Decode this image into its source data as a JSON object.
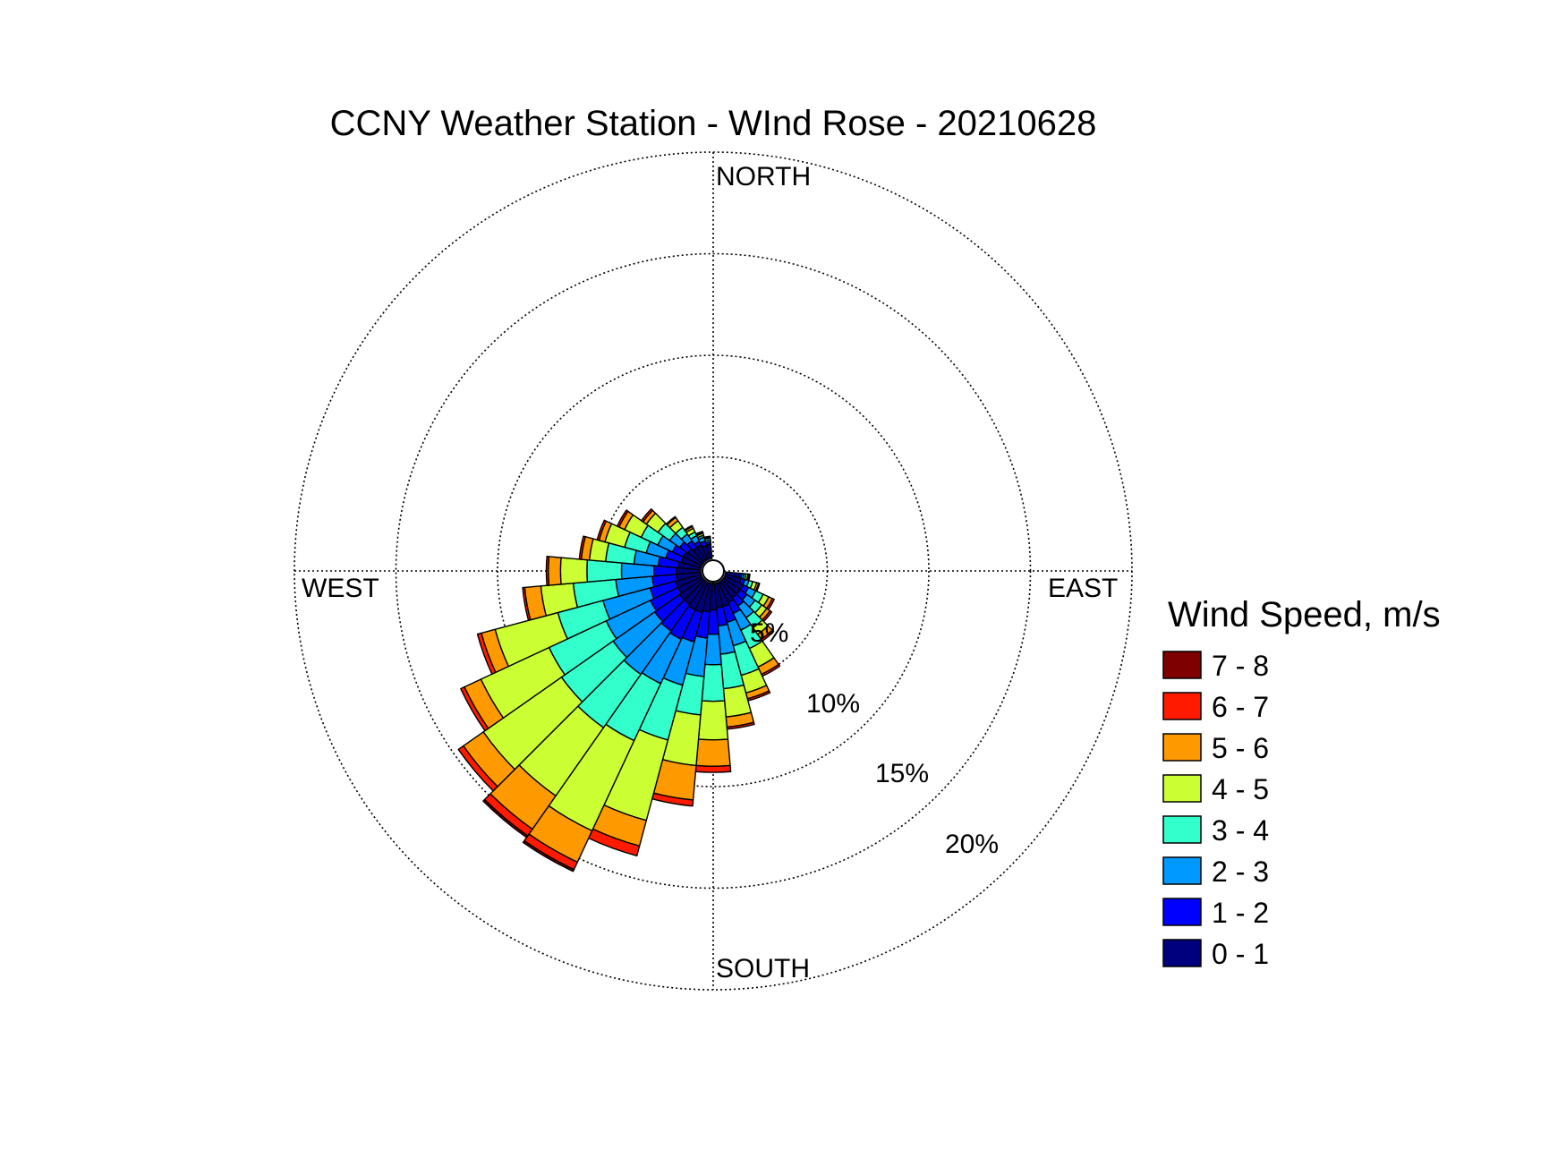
{
  "chart_data": {
    "type": "windrose",
    "title": "CCNY Weather Station - WInd Rose - 20210628",
    "directions": {
      "north": "NORTH",
      "south": "SOUTH",
      "east": "EAST",
      "west": "WEST"
    },
    "ring_labels": [
      "5%",
      "10%",
      "15%",
      "20%"
    ],
    "ring_values": [
      5,
      10,
      15,
      20
    ],
    "grid": true,
    "legend": {
      "title": "Wind Speed, m/s",
      "placement": "right"
    },
    "speed_bins": [
      {
        "label": "0 - 1",
        "color": "#00007f"
      },
      {
        "label": "1 - 2",
        "color": "#0000ff"
      },
      {
        "label": "2 - 3",
        "color": "#0099ff"
      },
      {
        "label": "3 - 4",
        "color": "#33ffcc"
      },
      {
        "label": "4 - 5",
        "color": "#ccff33"
      },
      {
        "label": "5 - 6",
        "color": "#ff9900"
      },
      {
        "label": "6 - 7",
        "color": "#ff1a00"
      },
      {
        "label": "7 - 8",
        "color": "#7f0000"
      }
    ],
    "sectors_deg": [
      100,
      110,
      120,
      130,
      140,
      150,
      160,
      170,
      180,
      190,
      200,
      210,
      220,
      230,
      240,
      250,
      260,
      270,
      280,
      290,
      300,
      310,
      320,
      330,
      340,
      350
    ],
    "sector_width_deg": 10,
    "cumulative_percent": [
      [
        0.7,
        0.8,
        0.9,
        1.0,
        1.1,
        1.15,
        1.2,
        1.2
      ],
      [
        0.8,
        1.0,
        1.2,
        1.4,
        1.6,
        1.7,
        1.75,
        1.75
      ],
      [
        1.0,
        1.3,
        1.7,
        2.1,
        2.4,
        2.6,
        2.7,
        2.7
      ],
      [
        1.0,
        1.4,
        1.9,
        2.3,
        2.6,
        2.8,
        2.9,
        2.9
      ],
      [
        1.0,
        1.5,
        2.2,
        2.8,
        3.2,
        3.5,
        3.6,
        3.6
      ],
      [
        1.1,
        1.7,
        2.6,
        3.6,
        4.6,
        5.0,
        5.1,
        5.1
      ],
      [
        1.2,
        2.0,
        3.2,
        4.7,
        5.6,
        5.9,
        6.0,
        6.0
      ],
      [
        1.2,
        2.1,
        3.5,
        5.2,
        6.6,
        7.1,
        7.2,
        7.2
      ],
      [
        1.3,
        2.5,
        4.0,
        5.8,
        7.7,
        9.0,
        9.3,
        9.3
      ],
      [
        1.4,
        2.7,
        4.6,
        6.5,
        9.0,
        10.7,
        11.0,
        11.0
      ],
      [
        1.5,
        3.0,
        5.2,
        8.0,
        12.1,
        13.4,
        13.9,
        13.9
      ],
      [
        1.5,
        3.1,
        5.5,
        8.6,
        13.5,
        15.2,
        15.6,
        15.7
      ],
      [
        1.4,
        3.0,
        5.6,
        8.8,
        12.9,
        14.9,
        15.3,
        15.4
      ],
      [
        1.4,
        2.9,
        5.4,
        8.5,
        13.2,
        14.4,
        14.7,
        14.7
      ],
      [
        1.3,
        2.8,
        5.2,
        8.3,
        12.0,
        12.9,
        13.1,
        13.1
      ],
      [
        1.3,
        2.6,
        5.0,
        7.3,
        10.5,
        11.2,
        11.4,
        11.4
      ],
      [
        1.2,
        2.4,
        4.2,
        6.3,
        7.9,
        8.7,
        8.8,
        8.8
      ],
      [
        1.2,
        2.3,
        3.9,
        5.6,
        6.9,
        7.5,
        7.6,
        7.6
      ],
      [
        1.1,
        2.1,
        3.3,
        4.7,
        5.5,
        5.9,
        6.0,
        6.0
      ],
      [
        1.0,
        1.8,
        2.8,
        3.9,
        4.9,
        5.2,
        5.3,
        5.3
      ],
      [
        1.0,
        1.6,
        2.4,
        3.3,
        4.2,
        4.5,
        4.6,
        4.6
      ],
      [
        0.9,
        1.4,
        2.0,
        2.7,
        3.4,
        3.6,
        3.7,
        3.7
      ],
      [
        0.8,
        1.2,
        1.6,
        2.0,
        2.4,
        2.6,
        2.65,
        2.65
      ],
      [
        0.8,
        1.0,
        1.3,
        1.5,
        1.7,
        1.8,
        1.85,
        1.85
      ],
      [
        0.7,
        0.9,
        1.1,
        1.2,
        1.3,
        1.35,
        1.4,
        1.4
      ],
      [
        0.7,
        0.8,
        0.9,
        1.0,
        1.05,
        1.1,
        1.1,
        1.1
      ]
    ]
  }
}
